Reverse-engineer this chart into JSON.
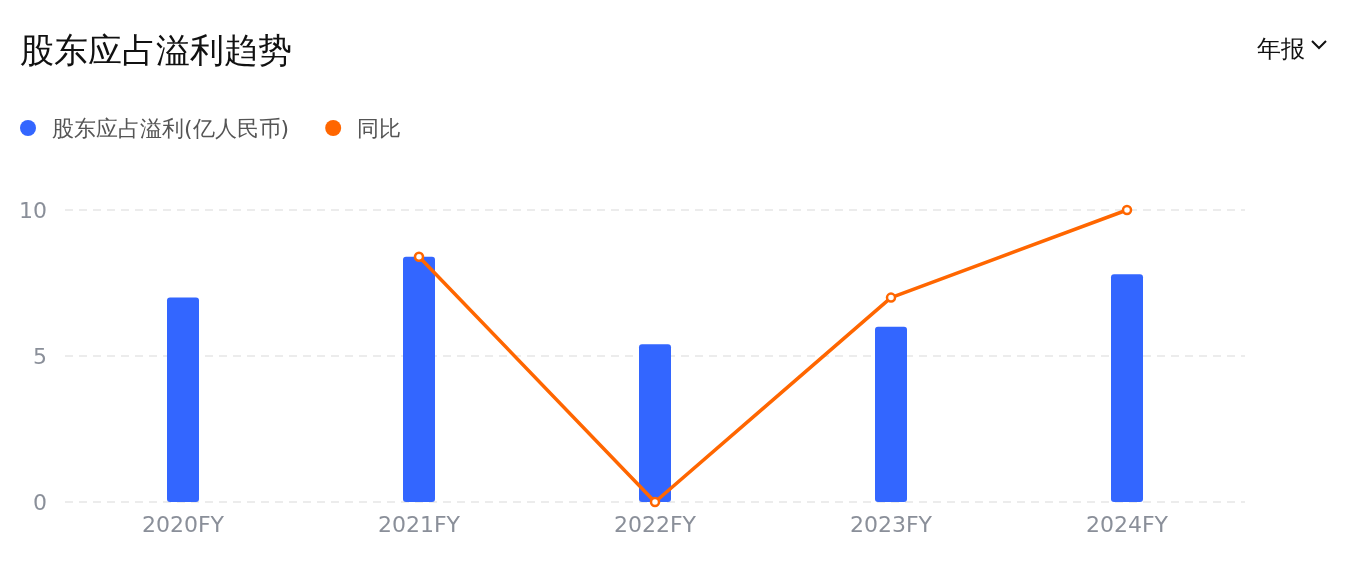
{
  "chart_data": {
    "type": "bar",
    "title": "股东应占溢利趋势",
    "annotations": [
      "年报"
    ],
    "categories": [
      "2020FY",
      "2021FY",
      "2022FY",
      "2023FY",
      "2024FY"
    ],
    "series": [
      {
        "name": "股东应占溢利(亿人民币)",
        "color": "#3366ff",
        "values": [
          7.0,
          8.4,
          5.4,
          6.0,
          7.8
        ]
      },
      {
        "name": "同比",
        "type": "line",
        "color": "#ff6600",
        "values": [
          null,
          8.4,
          0,
          7.0,
          10
        ]
      }
    ],
    "ylim": [
      0,
      10
    ],
    "yticks": [
      0,
      5,
      10
    ],
    "grid": "y",
    "legend": "top left",
    "marker": "circle",
    "line_style": "solid"
  }
}
